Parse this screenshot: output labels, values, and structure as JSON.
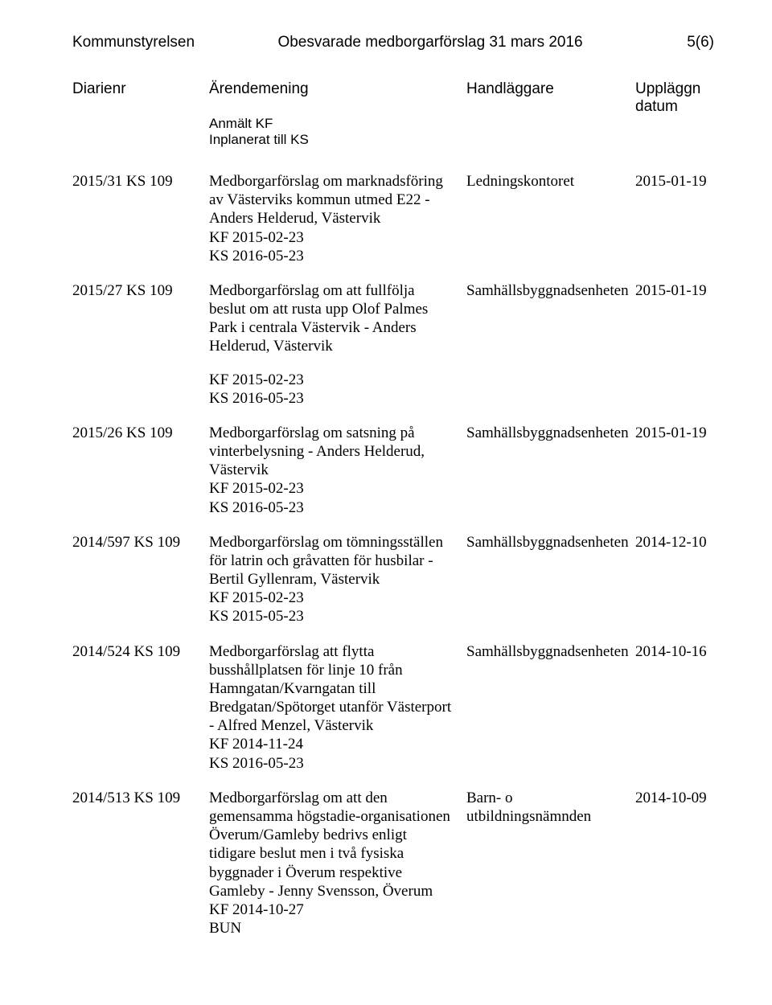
{
  "header": {
    "left": "Kommunstyrelsen",
    "center": "Obesvarade medborgarförslag 31 mars 2016",
    "right": "5(6)"
  },
  "columns": {
    "c1": "Diarienr",
    "c2": "Ärendemening",
    "c3": "Handläggare",
    "c4": "Uppläggn datum",
    "sub1": "Anmält KF",
    "sub2": "Inplanerat till KS"
  },
  "entries": [
    {
      "diarienr": "2015/31 KS 109",
      "title": "Medborgarförslag om marknadsföring av Västerviks kommun utmed E22 - Anders Helderud, Västervik",
      "kf": "KF 2015-02-23",
      "ks": "KS 2016-05-23",
      "kfSpaced": false,
      "handler": "Ledningskontoret",
      "date": "2015-01-19"
    },
    {
      "diarienr": "2015/27 KS 109",
      "title": "Medborgarförslag om att fullfölja beslut om att rusta upp Olof Palmes Park i centrala Västervik - Anders Helderud, Västervik",
      "kf": "KF 2015-02-23",
      "ks": "KS 2016-05-23",
      "kfSpaced": true,
      "handler": "Samhällsbyggnadsenheten",
      "date": "2015-01-19"
    },
    {
      "diarienr": "2015/26 KS 109",
      "title": "Medborgarförslag om satsning på vinterbelysning - Anders Helderud, Västervik",
      "kf": "KF 2015-02-23",
      "ks": "KS 2016-05-23",
      "kfSpaced": false,
      "handler": "Samhällsbyggnadsenheten",
      "date": "2015-01-19"
    },
    {
      "diarienr": "2014/597 KS 109",
      "title": "Medborgarförslag om tömningsställen för latrin och gråvatten för husbilar - Bertil Gyllenram, Västervik",
      "kf": "KF 2015-02-23",
      "ks": "KS 2015-05-23",
      "kfSpaced": false,
      "handler": "Samhällsbyggnadsenheten",
      "date": "2014-12-10"
    },
    {
      "diarienr": "2014/524 KS 109",
      "title": "Medborgarförslag att flytta busshållplatsen för linje 10 från Hamngatan/Kvarngatan till Bredgatan/Spötorget utanför Västerport - Alfred Menzel, Västervik",
      "kf": "KF 2014-11-24",
      "ks": "KS 2016-05-23",
      "kfSpaced": false,
      "handler": "Samhällsbyggnadsenheten",
      "date": "2014-10-16"
    },
    {
      "diarienr": "2014/513 KS 109",
      "title": "Medborgarförslag om att den gemensamma högstadie-organisationen Överum/Gamleby bedrivs enligt tidigare beslut men i två fysiska byggnader i Överum respektive Gamleby - Jenny Svensson, Överum",
      "kf": "KF 2014-10-27",
      "ks": "BUN",
      "kfSpaced": false,
      "handler": "Barn- o utbildningsnämnden",
      "date": "2014-10-09"
    }
  ]
}
